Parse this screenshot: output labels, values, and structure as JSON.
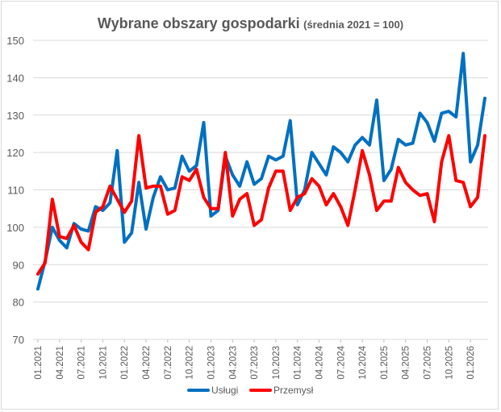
{
  "chart_data": {
    "type": "line",
    "title": "Wybrane obszary gospodarki",
    "subtitle": "(średnia 2021 = 100)",
    "xlabel": "",
    "ylabel": "",
    "ylim": [
      70,
      150
    ],
    "yticks": [
      "70",
      "80",
      "90",
      "100",
      "110",
      "120",
      "130",
      "140",
      "150"
    ],
    "grid": true,
    "legend": "bottom",
    "x": [
      "01.2021",
      "02.2021",
      "03.2021",
      "04.2021",
      "05.2021",
      "06.2021",
      "07.2021",
      "08.2021",
      "09.2021",
      "10.2021",
      "11.2021",
      "12.2021",
      "01.2022",
      "02.2022",
      "03.2022",
      "04.2022",
      "05.2022",
      "06.2022",
      "07.2022",
      "08.2022",
      "09.2022",
      "10.2022",
      "11.2022",
      "12.2022",
      "01.2023",
      "02.2023",
      "03.2023",
      "04.2023",
      "05.2023",
      "06.2023",
      "07.2023",
      "08.2023",
      "09.2023",
      "10.2023",
      "11.2023",
      "12.2023",
      "01.2024",
      "02.2024",
      "03.2024",
      "04.2024",
      "05.2024",
      "06.2024",
      "07.2024",
      "08.2024",
      "09.2024",
      "10.2024",
      "11.2024",
      "12.2024",
      "01.2025",
      "02.2025",
      "03.2025",
      "04.2025",
      "05.2025",
      "06.2025",
      "07.2025",
      "08.2025",
      "09.2025",
      "10.2025",
      "11.2025",
      "12.2025",
      "01.2026",
      "02.2026",
      "03.2026"
    ],
    "x_tick_labels": [
      "01.2021",
      "04.2021",
      "07.2021",
      "10.2021",
      "01.2022",
      "04.2022",
      "07.2022",
      "10.2022",
      "01.2023",
      "04.2023",
      "07.2023",
      "10.2023",
      "01.2024",
      "04.2024",
      "07.2024",
      "10.2024",
      "01.2025",
      "04.2025",
      "07.2025",
      "10.2025",
      "01.2026"
    ],
    "series": [
      {
        "name": "Usługi",
        "color": "#0070c0",
        "values": [
          83.5,
          91,
          100,
          96.5,
          94.5,
          101,
          99.5,
          99,
          105.5,
          104.5,
          106.5,
          120.5,
          96,
          98.5,
          112,
          99.5,
          108,
          113.5,
          110,
          110.5,
          119,
          115,
          116.5,
          128,
          103,
          104.5,
          119,
          114,
          111,
          117.5,
          111.5,
          113,
          119,
          118,
          119,
          128.5,
          106,
          110,
          120,
          117,
          114,
          121.5,
          120,
          117.5,
          122,
          124,
          122,
          134,
          112.5,
          115.5,
          123.5,
          122,
          122.5,
          130.5,
          128,
          123,
          130.5,
          131,
          129.5,
          146.5,
          117.5,
          122,
          134.5
        ]
      },
      {
        "name": "Przemysł",
        "color": "#ff0000",
        "values": [
          87.5,
          90.5,
          107.5,
          97.5,
          97,
          100.5,
          96,
          94,
          104,
          105.5,
          111,
          107.5,
          104,
          107,
          124.5,
          110.5,
          111,
          111,
          103.5,
          104.5,
          113.5,
          112.5,
          115.5,
          108,
          105,
          105,
          120,
          103,
          107.5,
          109,
          100.5,
          102,
          110.5,
          115,
          115,
          104.5,
          108,
          109,
          113,
          111,
          106,
          109,
          105.5,
          100.5,
          110,
          120.5,
          114,
          104.5,
          107,
          107,
          116,
          112,
          110,
          108.5,
          109,
          101.5,
          117.5,
          124.5,
          112.5,
          112,
          105.5,
          108,
          124.5
        ]
      }
    ]
  }
}
